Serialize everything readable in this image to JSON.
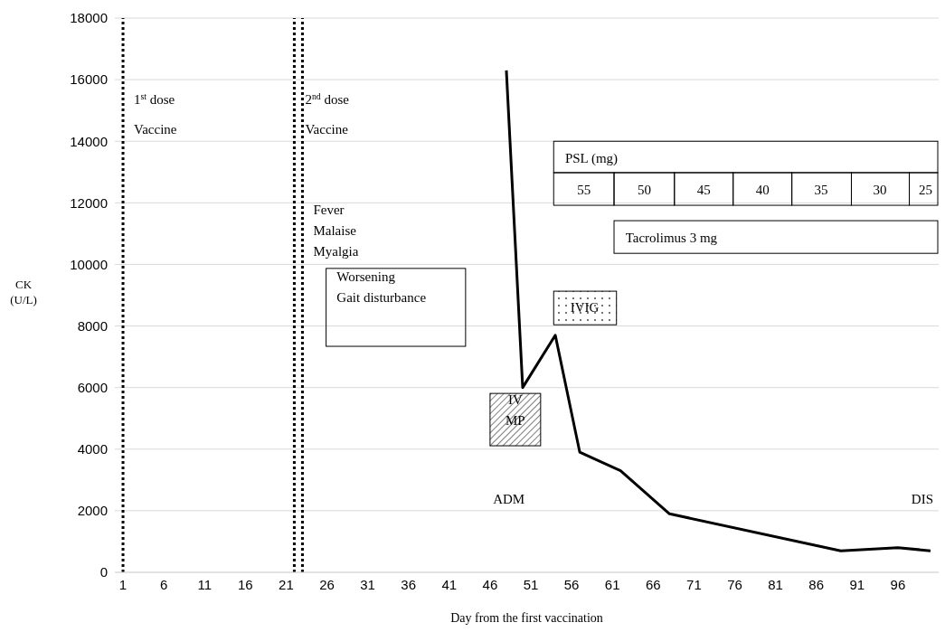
{
  "chart_data": {
    "type": "line",
    "xlabel": "Day from the first vaccination",
    "ylabel": "CK\n(U/L)",
    "x": [
      48,
      50,
      54,
      57,
      62,
      68,
      89,
      96,
      100
    ],
    "series": [
      {
        "color": "#000000",
        "values": [
          16300,
          6000,
          7700,
          3900,
          3300,
          1900,
          700,
          800,
          700
        ]
      }
    ],
    "xlim": [
      0,
      101
    ],
    "xticks": [
      1,
      6,
      11,
      16,
      21,
      26,
      31,
      36,
      41,
      46,
      51,
      56,
      61,
      66,
      71,
      76,
      81,
      86,
      91,
      96
    ],
    "ylim": [
      0,
      18000
    ],
    "yticks": [
      0,
      2000,
      4000,
      6000,
      8000,
      10000,
      12000,
      14000,
      16000,
      18000
    ],
    "grid": "y",
    "marker": "none",
    "line_style": "solid",
    "ref_lines": [
      {
        "axis": "x",
        "value": 1,
        "color": "#000000",
        "line_style": "dotted",
        "label": "1$^{st}$ dose\nVaccine"
      },
      {
        "axis": "x",
        "value": 22,
        "color": "#000000",
        "line_style": "dotted",
        "label": "2$^{nd}$ dose\nVaccine"
      },
      {
        "axis": "x",
        "value": 23,
        "color": "#000000",
        "line_style": "dotted",
        "label": "Fever\nMalaise\nMyalgia"
      }
    ],
    "annotations": [
      "Worsening\nGait disturbance",
      "IV\nMP",
      "IVIG",
      "PSL (mg)",
      "55",
      "50",
      "45",
      "40",
      "35",
      "30",
      "25",
      "Tacrolimus 3 mg",
      "ADM",
      "DIS"
    ]
  }
}
